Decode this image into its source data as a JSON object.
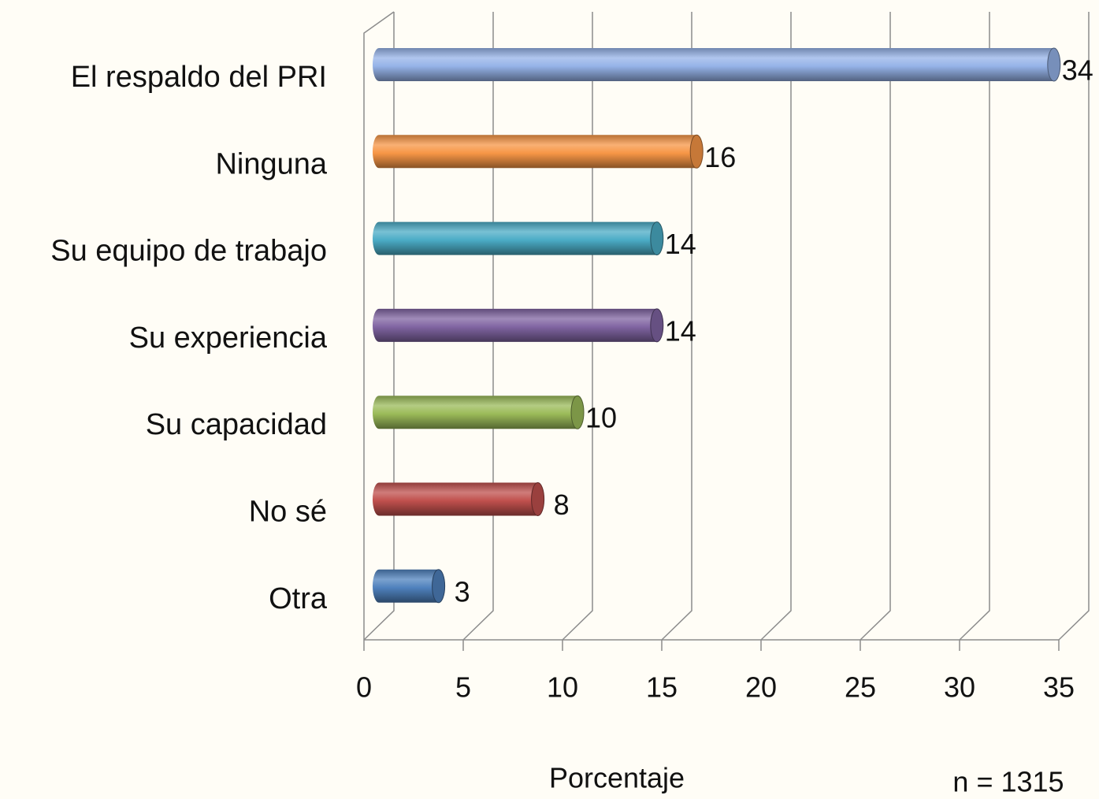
{
  "chart_data": {
    "type": "bar",
    "orientation": "horizontal",
    "categories": [
      "El respaldo del PRI",
      "Ninguna",
      "Su equipo de trabajo",
      "Su experiencia",
      "Su capacidad",
      "No sé",
      "Otra"
    ],
    "values": [
      34,
      16,
      14,
      14,
      10,
      8,
      3
    ],
    "colors": [
      "#95b3e8",
      "#f79646",
      "#4bacc6",
      "#8064a2",
      "#9bbb59",
      "#c0504d",
      "#4f81bd"
    ],
    "xlim": [
      0,
      35
    ],
    "xticks": [
      0,
      5,
      10,
      15,
      20,
      25,
      30,
      35
    ],
    "grid": true,
    "xlabel": "Porcentaje",
    "annotation": "n = 1315"
  }
}
